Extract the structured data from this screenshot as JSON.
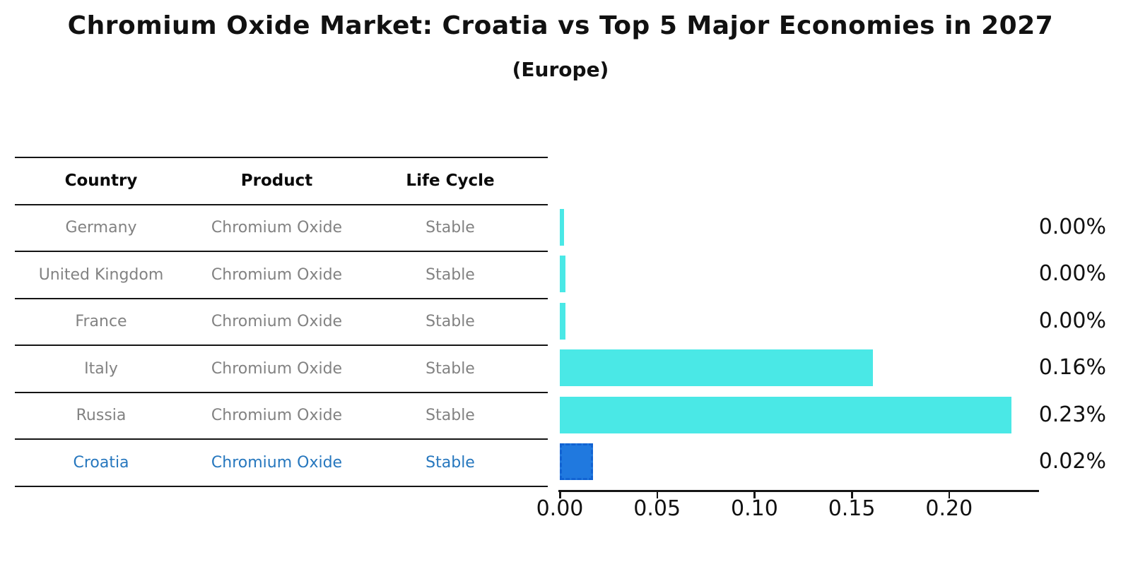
{
  "title": "Chromium Oxide Market: Croatia vs Top 5 Major Economies in 2027",
  "subtitle": "(Europe)",
  "table": {
    "headers": [
      "Country",
      "Product",
      "Life Cycle"
    ],
    "rows": [
      {
        "country": "Germany",
        "product": "Chromium Oxide",
        "life_cycle": "Stable",
        "highlight": false
      },
      {
        "country": "United Kingdom",
        "product": "Chromium Oxide",
        "life_cycle": "Stable",
        "highlight": false
      },
      {
        "country": "France",
        "product": "Chromium Oxide",
        "life_cycle": "Stable",
        "highlight": false
      },
      {
        "country": "Italy",
        "product": "Chromium Oxide",
        "life_cycle": "Stable",
        "highlight": false
      },
      {
        "country": "Russia",
        "product": "Chromium Oxide",
        "life_cycle": "Stable",
        "highlight": false
      },
      {
        "country": "Croatia",
        "product": "Chromium Oxide",
        "life_cycle": "Stable",
        "highlight": true
      }
    ]
  },
  "chart_data": {
    "type": "bar",
    "orientation": "horizontal",
    "title": "Chromium Oxide Market: Croatia vs Top 5 Major Economies in 2027 (Europe)",
    "categories": [
      "Germany",
      "United Kingdom",
      "France",
      "Italy",
      "Russia",
      "Croatia"
    ],
    "values": [
      0.002,
      0.003,
      0.003,
      0.161,
      0.232,
      0.017
    ],
    "value_labels": [
      "0.00%",
      "0.00%",
      "0.00%",
      "0.16%",
      "0.23%",
      "0.02%"
    ],
    "highlight_index": 5,
    "x_tick_labels": [
      "0.00",
      "0.05",
      "0.10",
      "0.15",
      "0.20"
    ],
    "x_tick_values": [
      0,
      0.05,
      0.1,
      0.15,
      0.2
    ],
    "xlim": [
      0,
      0.246
    ],
    "grid": false,
    "legend": "none",
    "bar_color": "#4ae8e6",
    "highlight_bar_color": "#2079df",
    "highlight_bar_edge_color": "#1263d2",
    "highlight_text_color": "#2677be",
    "row_text_color": "#828282"
  }
}
